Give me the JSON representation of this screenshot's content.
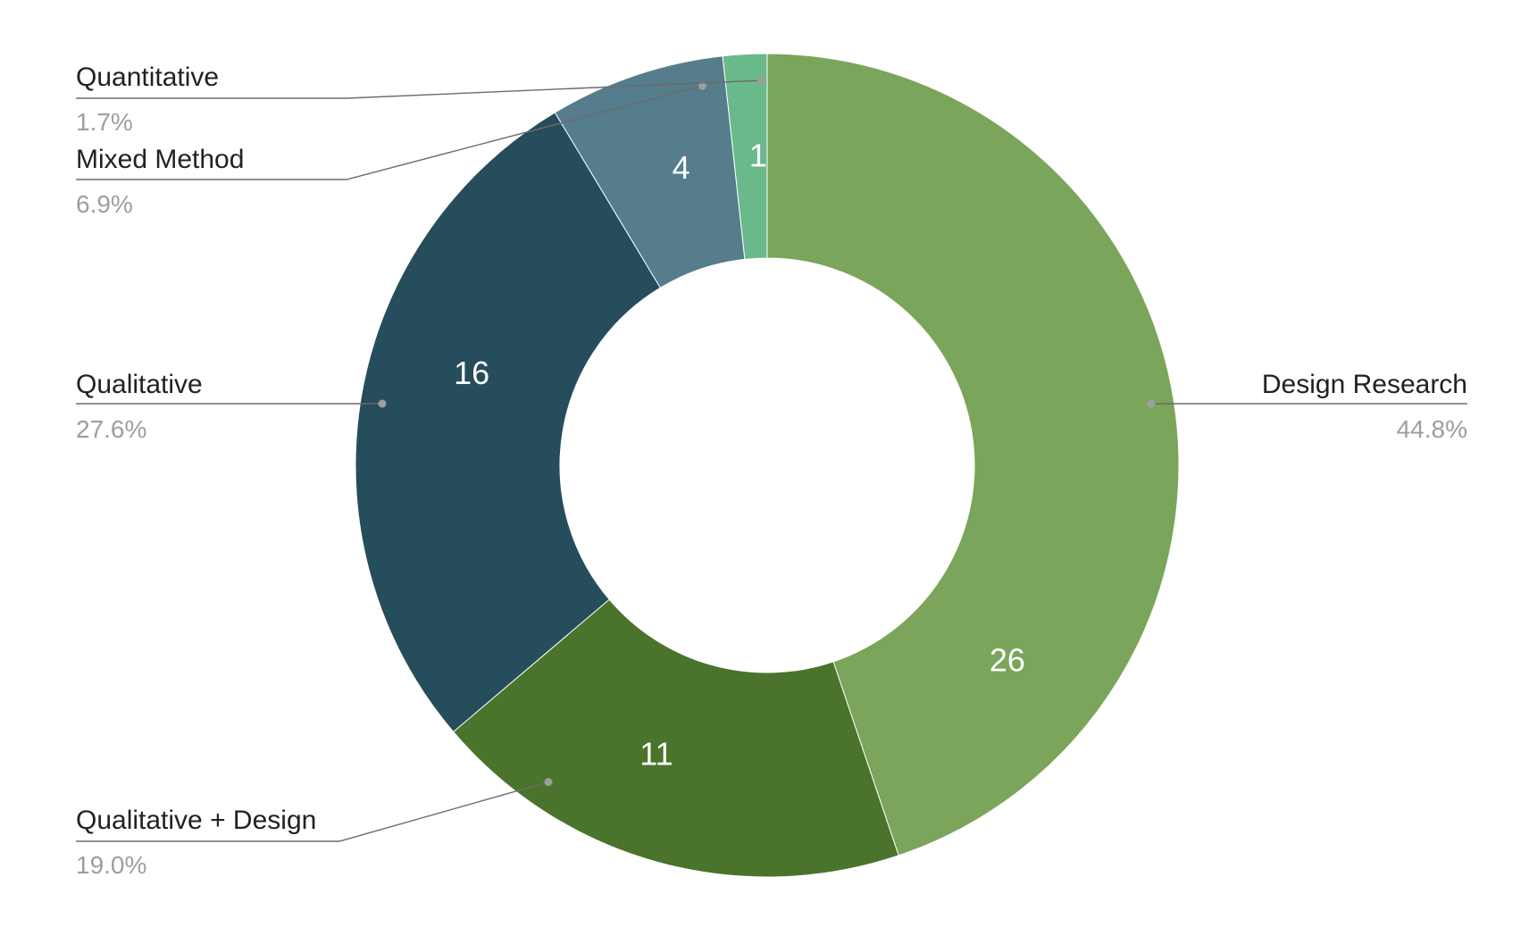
{
  "chart_data": {
    "type": "pie",
    "donut": true,
    "title": "",
    "start_angle_deg": 0,
    "direction": "clockwise",
    "slices": [
      {
        "category": "Design Research",
        "value": 26,
        "percent_label": "44.8%",
        "color": "#7aa55a"
      },
      {
        "category": "Qualitative + Design",
        "value": 11,
        "percent_label": "19.0%",
        "color": "#4a732b"
      },
      {
        "category": "Qualitative",
        "value": 16,
        "percent_label": "27.6%",
        "color": "#264d5b"
      },
      {
        "category": "Mixed Method",
        "value": 4,
        "percent_label": "6.9%",
        "color": "#567d8b"
      },
      {
        "category": "Quantitative",
        "value": 1,
        "percent_label": "1.7%",
        "color": "#6ab98a"
      }
    ],
    "legend": "labeled-callouts"
  }
}
